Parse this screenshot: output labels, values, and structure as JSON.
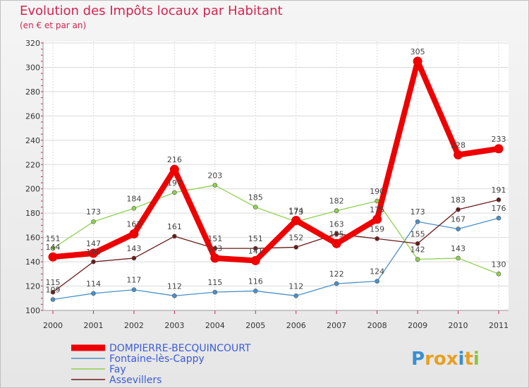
{
  "title": "Evolution des Impôts locaux par Habitant",
  "subtitle": "(en € et par an)",
  "logo": {
    "letters": [
      "P",
      "r",
      "o",
      "x",
      "i",
      "t",
      "i"
    ],
    "colors": [
      "#3b8fd1",
      "#e8a020",
      "#e8a020",
      "#e8a020",
      "#3b8fd1",
      "#e8a020",
      "#8ac43f"
    ]
  },
  "chart_data": {
    "type": "line",
    "categories": [
      "2000",
      "2001",
      "2002",
      "2003",
      "2004",
      "2005",
      "2006",
      "2007",
      "2008",
      "2009",
      "2010",
      "2011"
    ],
    "ylim": [
      100,
      320
    ],
    "yticks": [
      100,
      120,
      140,
      160,
      180,
      200,
      220,
      240,
      260,
      280,
      300,
      320
    ],
    "grid": true,
    "legend_position": "bottom-left",
    "series": [
      {
        "name": "DOMPIERRE-BECQUINCOURT",
        "color": "#ee0000",
        "emphasis": true,
        "values": [
          144,
          147,
          163,
          216,
          143,
          141,
          174,
          155,
          175,
          305,
          228,
          233
        ]
      },
      {
        "name": "Fontaine-lès-Cappy",
        "color": "#4a90c8",
        "emphasis": false,
        "values": [
          109,
          114,
          117,
          112,
          115,
          116,
          112,
          122,
          124,
          173,
          167,
          176
        ]
      },
      {
        "name": "Fay",
        "color": "#8fd14f",
        "emphasis": false,
        "values": [
          151,
          173,
          184,
          197,
          203,
          185,
          173,
          182,
          190,
          142,
          143,
          130
        ]
      },
      {
        "name": "Assevillers",
        "color": "#6b1a1a",
        "emphasis": false,
        "values": [
          115,
          140,
          143,
          161,
          151,
          151,
          152,
          163,
          159,
          155,
          183,
          191
        ]
      }
    ]
  }
}
